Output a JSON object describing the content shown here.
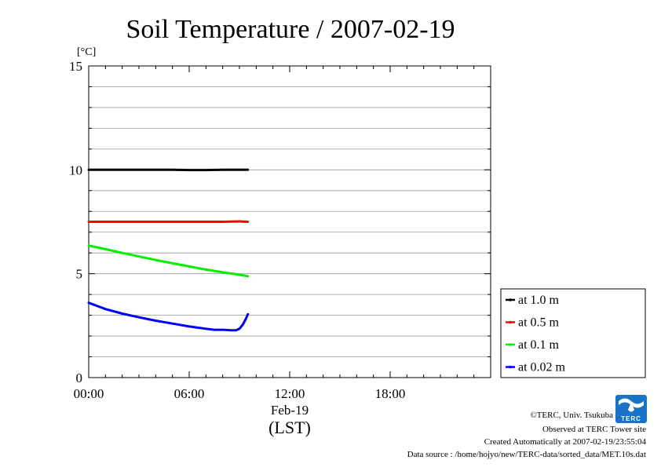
{
  "chart_data": {
    "type": "line",
    "title": "Soil Temperature / 2007-02-19",
    "ylabel": "[°C]",
    "ylim": [
      0,
      15
    ],
    "y_ticks": [
      "0",
      "5",
      "10",
      "15"
    ],
    "xlim_hours": [
      0,
      24
    ],
    "x_ticks": [
      {
        "hour": 0,
        "label": "00:00"
      },
      {
        "hour": 6,
        "label": "06:00"
      },
      {
        "hour": 12,
        "label": "12:00"
      },
      {
        "hour": 18,
        "label": "18:00"
      }
    ],
    "xlabel_date": "Feb-19",
    "xlabel_zone": "(LST)",
    "grid": "horizontal every 1 °C",
    "legend_position": "right, below plot",
    "series": [
      {
        "name": "at 1.0 m",
        "color": "#000000",
        "x": [
          0,
          1,
          2,
          3,
          4,
          5,
          6,
          7,
          8,
          9,
          9.5
        ],
        "y": [
          10.0,
          10.0,
          10.0,
          10.0,
          10.0,
          10.0,
          9.99,
          9.99,
          10.0,
          10.0,
          10.0
        ]
      },
      {
        "name": "at 0.5 m",
        "color": "#ff0000",
        "x": [
          0,
          1,
          2,
          3,
          4,
          5,
          6,
          7,
          8,
          9,
          9.5
        ],
        "y": [
          7.5,
          7.5,
          7.5,
          7.5,
          7.5,
          7.5,
          7.5,
          7.5,
          7.5,
          7.52,
          7.5
        ]
      },
      {
        "name": "at 0.1 m",
        "color": "#00ee00",
        "x": [
          0,
          1,
          2,
          3,
          4,
          5,
          6,
          7,
          8,
          9,
          9.5
        ],
        "y": [
          6.35,
          6.18,
          6.0,
          5.83,
          5.66,
          5.5,
          5.35,
          5.2,
          5.07,
          4.95,
          4.88
        ]
      },
      {
        "name": "at 0.02 m",
        "color": "#0000ff",
        "x": [
          0,
          0.5,
          1,
          2,
          3,
          4,
          5,
          6,
          7,
          7.5,
          8,
          8.5,
          8.8,
          9.0,
          9.2,
          9.4,
          9.5
        ],
        "y": [
          3.6,
          3.45,
          3.3,
          3.08,
          2.9,
          2.74,
          2.6,
          2.46,
          2.35,
          2.3,
          2.3,
          2.28,
          2.28,
          2.35,
          2.55,
          2.85,
          3.05
        ]
      }
    ]
  },
  "credits": {
    "copyright": "©TERC, Univ. Tsukuba",
    "observed": "Observed at TERC Tower site",
    "created": "Created Automatically at 2007-02-19/23:55:04",
    "source": "Data source : /home/hojyo/new/TERC-data/sorted_data/MET.10s.dat"
  },
  "logo": {
    "text": "TERC",
    "color": "#1a73c9"
  }
}
